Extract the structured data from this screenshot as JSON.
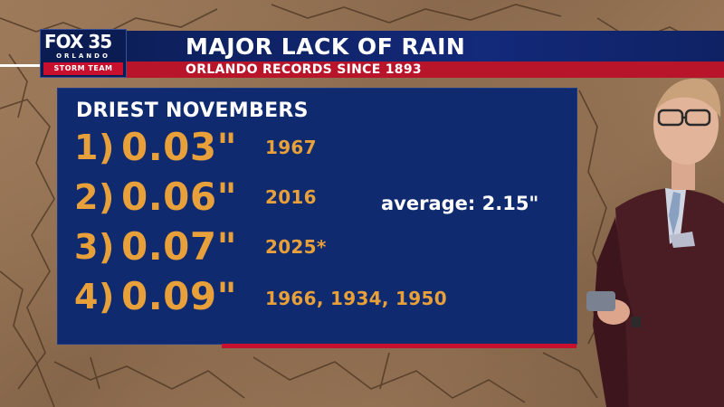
{
  "brand": {
    "logo": "FOX 35",
    "city": "ORLANDO",
    "team": "STORM TEAM"
  },
  "header": {
    "title": "MAJOR LACK OF RAIN",
    "subtitle": "ORLANDO RECORDS SINCE 1893"
  },
  "panel": {
    "heading": "DRIEST NOVEMBERS",
    "average": "average: 2.15\"",
    "rows": [
      {
        "rank": "1)",
        "amount": "0.03\"",
        "years": "1967"
      },
      {
        "rank": "2)",
        "amount": "0.06\"",
        "years": "2016"
      },
      {
        "rank": "3)",
        "amount": "0.07\"",
        "years": "2025*"
      },
      {
        "rank": "4)",
        "amount": "0.09\"",
        "years": "1966, 1934, 1950"
      }
    ]
  },
  "colors": {
    "navy": "#0f2a6e",
    "red": "#c8102e",
    "orange": "#e8a03a"
  }
}
